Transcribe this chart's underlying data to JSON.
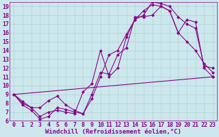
{
  "xlabel": "Windchill (Refroidissement éolien,°C)",
  "background_color": "#cce8ec",
  "line_color": "#880088",
  "grid_color": "#aacccc",
  "xlim": [
    -0.5,
    23.5
  ],
  "ylim": [
    6,
    19.5
  ],
  "xticks": [
    0,
    1,
    2,
    3,
    4,
    5,
    6,
    7,
    8,
    9,
    10,
    11,
    12,
    13,
    14,
    15,
    16,
    17,
    18,
    19,
    20,
    21,
    22,
    23
  ],
  "yticks": [
    6,
    7,
    8,
    9,
    10,
    11,
    12,
    13,
    14,
    15,
    16,
    17,
    18,
    19
  ],
  "series": [
    {
      "x": [
        0,
        23
      ],
      "y": [
        9,
        11
      ]
    },
    {
      "x": [
        0,
        1,
        2,
        3,
        4,
        5,
        6,
        7,
        8,
        9,
        10,
        11,
        12,
        13,
        14,
        15,
        16,
        17,
        18,
        19,
        20,
        21,
        22,
        23
      ],
      "y": [
        9,
        7.8,
        7.2,
        6.2,
        6.5,
        7.5,
        7.3,
        7.0,
        6.8,
        8.5,
        11.0,
        13.5,
        14.0,
        15.8,
        17.5,
        18.0,
        19.5,
        19.3,
        19.0,
        17.8,
        17.0,
        16.5,
        12.2,
        12.0
      ]
    },
    {
      "x": [
        0,
        1,
        2,
        3,
        4,
        5,
        6,
        7,
        8,
        9,
        10,
        11,
        12,
        13,
        14,
        15,
        16,
        17,
        18,
        19,
        20,
        21,
        22,
        23
      ],
      "y": [
        9,
        8.0,
        7.5,
        7.5,
        8.3,
        8.8,
        7.8,
        7.2,
        6.8,
        9.0,
        11.5,
        11.3,
        13.5,
        14.3,
        17.8,
        17.8,
        18.0,
        19.0,
        18.5,
        16.0,
        15.0,
        14.0,
        12.5,
        11.5
      ]
    },
    {
      "x": [
        0,
        1,
        2,
        3,
        4,
        5,
        6,
        7,
        8,
        9,
        10,
        11,
        12,
        13,
        14,
        15,
        16,
        17,
        18,
        19,
        20,
        21,
        22,
        23
      ],
      "y": [
        9,
        8.2,
        7.5,
        6.5,
        7.0,
        7.2,
        7.0,
        6.8,
        9.3,
        10.2,
        14.0,
        11.0,
        12.0,
        15.5,
        17.5,
        18.5,
        19.2,
        19.0,
        18.5,
        16.0,
        17.5,
        17.2,
        12.0,
        11.0
      ]
    }
  ],
  "marker": "D",
  "markersize": 2,
  "linewidth": 0.8,
  "font_size": 6,
  "xlabel_fontsize": 6.5
}
